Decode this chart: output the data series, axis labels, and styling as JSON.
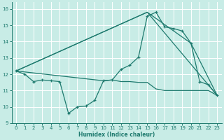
{
  "bg_color": "#c8ece6",
  "line_color": "#1e7a6e",
  "grid_color": "#ffffff",
  "xlabel": "Humidex (Indice chaleur)",
  "xlim": [
    -0.5,
    23.5
  ],
  "ylim": [
    9,
    16.4
  ],
  "xticks": [
    0,
    1,
    2,
    3,
    4,
    5,
    6,
    7,
    8,
    9,
    10,
    11,
    12,
    13,
    14,
    15,
    16,
    17,
    18,
    19,
    20,
    21,
    22,
    23
  ],
  "yticks": [
    9,
    10,
    11,
    12,
    13,
    14,
    15,
    16
  ],
  "main_x": [
    0,
    1,
    2,
    3,
    4,
    5,
    6,
    7,
    8,
    9,
    10,
    11,
    12,
    13,
    14,
    15,
    16,
    17,
    18,
    19,
    20,
    21,
    22,
    23
  ],
  "main_y": [
    12.2,
    12.0,
    11.55,
    11.65,
    11.6,
    11.55,
    9.6,
    10.0,
    10.05,
    10.4,
    11.6,
    11.65,
    12.3,
    12.55,
    13.05,
    15.55,
    15.8,
    14.9,
    14.8,
    14.65,
    13.9,
    11.55,
    11.35,
    10.7
  ],
  "fan_lines": [
    {
      "x": [
        0,
        15,
        23
      ],
      "y": [
        12.2,
        15.8,
        10.7
      ]
    },
    {
      "x": [
        0,
        15,
        20,
        23
      ],
      "y": [
        12.2,
        15.8,
        13.9,
        10.7
      ]
    },
    {
      "x": [
        0,
        10,
        11,
        12,
        13,
        14,
        15,
        16,
        17,
        18,
        19,
        20,
        21,
        22,
        23
      ],
      "y": [
        12.2,
        11.6,
        11.65,
        11.55,
        11.55,
        11.5,
        11.5,
        11.1,
        11.0,
        11.0,
        11.0,
        11.0,
        11.0,
        11.0,
        10.7
      ]
    }
  ]
}
